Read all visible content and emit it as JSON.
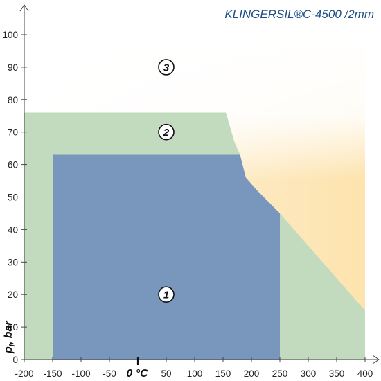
{
  "chart_data": {
    "type": "area",
    "title": "KLINGERSIL®C-4500 /2mm",
    "ylabel": "p",
    "ylabel_subscript": "i",
    "ylabel_unit": ", bar",
    "zero_label": "0 °C",
    "xlim": [
      -200,
      400
    ],
    "ylim": [
      0,
      100
    ],
    "x_ticks": [
      -200,
      -150,
      -100,
      -50,
      50,
      100,
      150,
      200,
      250,
      300,
      350,
      400
    ],
    "y_ticks": [
      0,
      10,
      20,
      30,
      40,
      50,
      60,
      70,
      80,
      90,
      100
    ],
    "grid": false,
    "zones": [
      {
        "name": "1",
        "color": "#7996bd",
        "label_pos": [
          50,
          20
        ],
        "boundary": [
          [
            -150,
            0
          ],
          [
            -150,
            63
          ],
          [
            180,
            63
          ],
          [
            190,
            56
          ],
          [
            210,
            52
          ],
          [
            250,
            45
          ],
          [
            250,
            0
          ]
        ]
      },
      {
        "name": "2",
        "color": "#c2dabe",
        "label_pos": [
          50,
          70
        ],
        "boundary": [
          [
            -200,
            0
          ],
          [
            -200,
            76
          ],
          [
            155,
            76
          ],
          [
            160,
            73
          ],
          [
            165,
            70
          ],
          [
            170,
            67
          ],
          [
            180,
            63
          ],
          [
            190,
            56
          ],
          [
            210,
            52
          ],
          [
            250,
            45
          ],
          [
            400,
            15
          ],
          [
            400,
            0
          ]
        ]
      },
      {
        "name": "3",
        "color": "#fde6b4",
        "label_pos": [
          50,
          90
        ]
      }
    ]
  }
}
